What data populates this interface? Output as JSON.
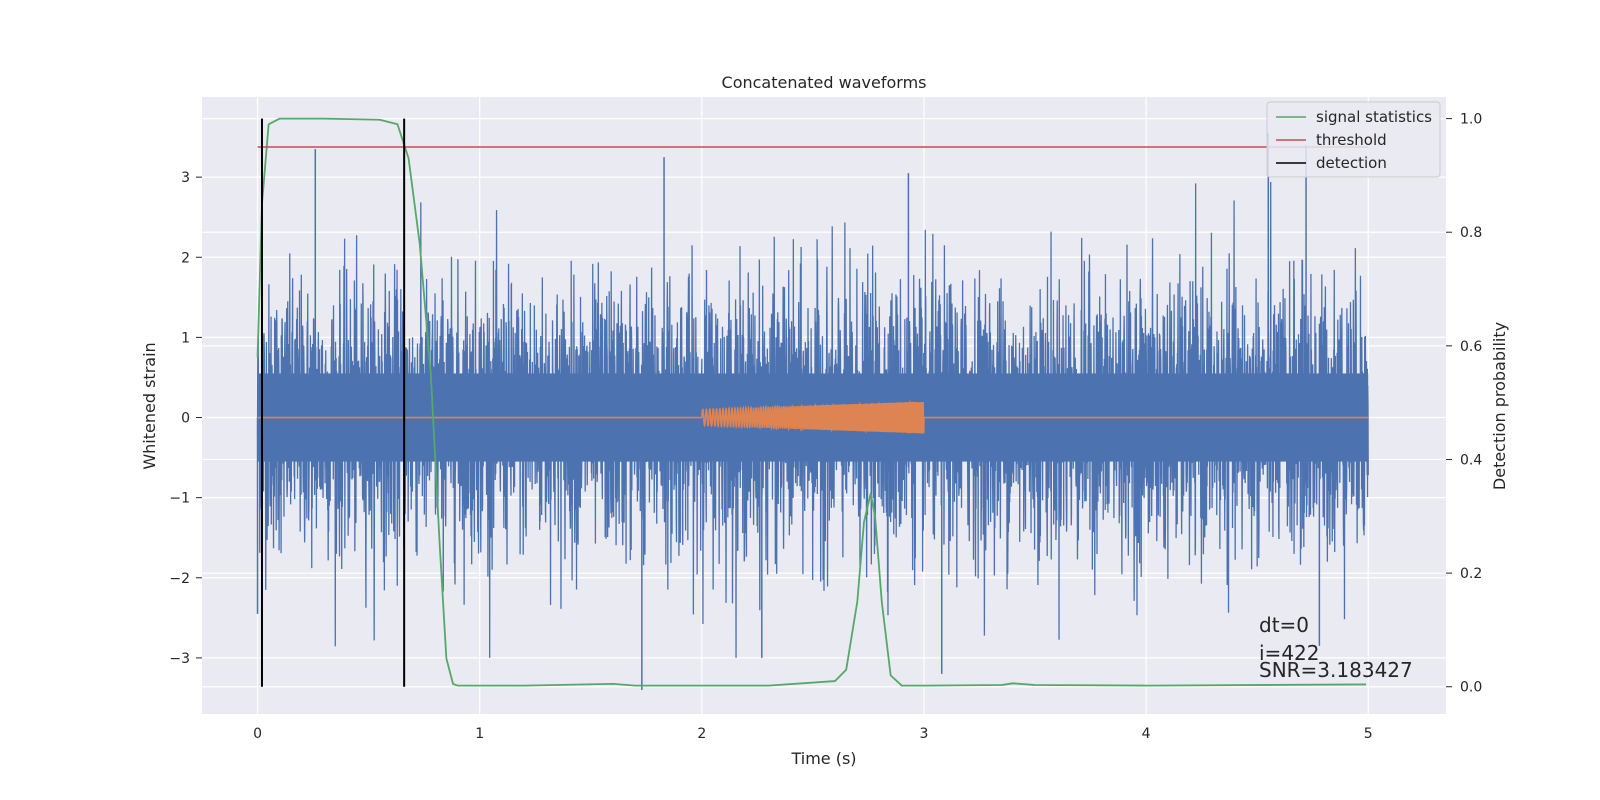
{
  "chart_data": {
    "type": "line",
    "title": "Concatenated waveforms",
    "xlabel": "Time (s)",
    "ylabel": "Whitened strain",
    "y2label": "Detection probability",
    "xlim": [
      -0.25,
      5.35
    ],
    "ylim": [
      -3.7,
      4.0
    ],
    "y2lim": [
      -0.048,
      1.038
    ],
    "x_ticks": [
      0,
      1,
      2,
      3,
      4,
      5
    ],
    "x_tick_labels": [
      "0",
      "1",
      "2",
      "3",
      "4",
      "5"
    ],
    "y_ticks": [
      -3,
      -2,
      -1,
      0,
      1,
      2,
      3
    ],
    "y_tick_labels": [
      "−3",
      "−2",
      "−1",
      "0",
      "1",
      "2",
      "3"
    ],
    "y2_ticks": [
      0.0,
      0.2,
      0.4,
      0.6,
      0.8,
      1.0
    ],
    "y2_tick_labels": [
      "0.0",
      "0.2",
      "0.4",
      "0.6",
      "0.8",
      "1.0"
    ],
    "grid": true,
    "legend_position": "top-right",
    "series": [
      {
        "axis": "left",
        "color": "#4c72b0",
        "description": "whitened strain noise, roughly Gaussian, amplitude ~±3.4, spanning t=0 to 5 s",
        "x_range": [
          0,
          5
        ],
        "spikes": [
          [
            0.26,
            3.35
          ],
          [
            0.0,
            -2.45
          ],
          [
            1.73,
            -3.4
          ],
          [
            1.83,
            3.25
          ],
          [
            2.93,
            3.05
          ],
          [
            4.55,
            3.55
          ],
          [
            4.72,
            3.4
          ],
          [
            4.78,
            -2.85
          ],
          [
            2.27,
            -3.0
          ],
          [
            3.08,
            -3.2
          ]
        ]
      },
      {
        "axis": "left",
        "color": "#dd8452",
        "description": "injected chirp signal from 2 to 3 s, amplitude increasing from 0.1 to 0.2",
        "x_range": [
          0,
          5
        ],
        "chirp": {
          "start": 2.0,
          "end": 3.0,
          "amp_start": 0.1,
          "amp_end": 0.2
        }
      },
      {
        "name": "signal statistics",
        "axis": "right",
        "color": "#55a868",
        "points": [
          [
            0,
            0.58
          ],
          [
            0.02,
            0.85
          ],
          [
            0.05,
            0.99
          ],
          [
            0.1,
            1.0
          ],
          [
            0.3,
            1.0
          ],
          [
            0.55,
            0.998
          ],
          [
            0.63,
            0.99
          ],
          [
            0.68,
            0.93
          ],
          [
            0.73,
            0.78
          ],
          [
            0.78,
            0.55
          ],
          [
            0.82,
            0.25
          ],
          [
            0.85,
            0.05
          ],
          [
            0.88,
            0.005
          ],
          [
            0.9,
            0.002
          ],
          [
            1.2,
            0.002
          ],
          [
            1.6,
            0.005
          ],
          [
            1.7,
            0.002
          ],
          [
            2.3,
            0.002
          ],
          [
            2.6,
            0.01
          ],
          [
            2.65,
            0.03
          ],
          [
            2.7,
            0.15
          ],
          [
            2.73,
            0.29
          ],
          [
            2.76,
            0.34
          ],
          [
            2.78,
            0.3
          ],
          [
            2.81,
            0.15
          ],
          [
            2.85,
            0.02
          ],
          [
            2.9,
            0.002
          ],
          [
            3.0,
            0.002
          ],
          [
            3.35,
            0.003
          ],
          [
            3.4,
            0.006
          ],
          [
            3.5,
            0.003
          ],
          [
            4.0,
            0.002
          ],
          [
            4.99,
            0.004
          ]
        ]
      },
      {
        "name": "threshold",
        "axis": "right",
        "color": "#c44e52",
        "value": 0.95,
        "x_range": [
          0,
          5
        ]
      },
      {
        "name": "detection",
        "axis": "right",
        "color": "#000000",
        "vlines": [
          0.02,
          0.66
        ],
        "y_range": [
          0.0,
          1.0
        ]
      }
    ],
    "annotations": [
      "dt=0",
      "i=422",
      "SNR=3.183427"
    ]
  },
  "colors": {
    "figure_bg": "#ffffff",
    "axes_bg": "#eaeaf2",
    "grid": "#ffffff",
    "text": "#262626"
  }
}
